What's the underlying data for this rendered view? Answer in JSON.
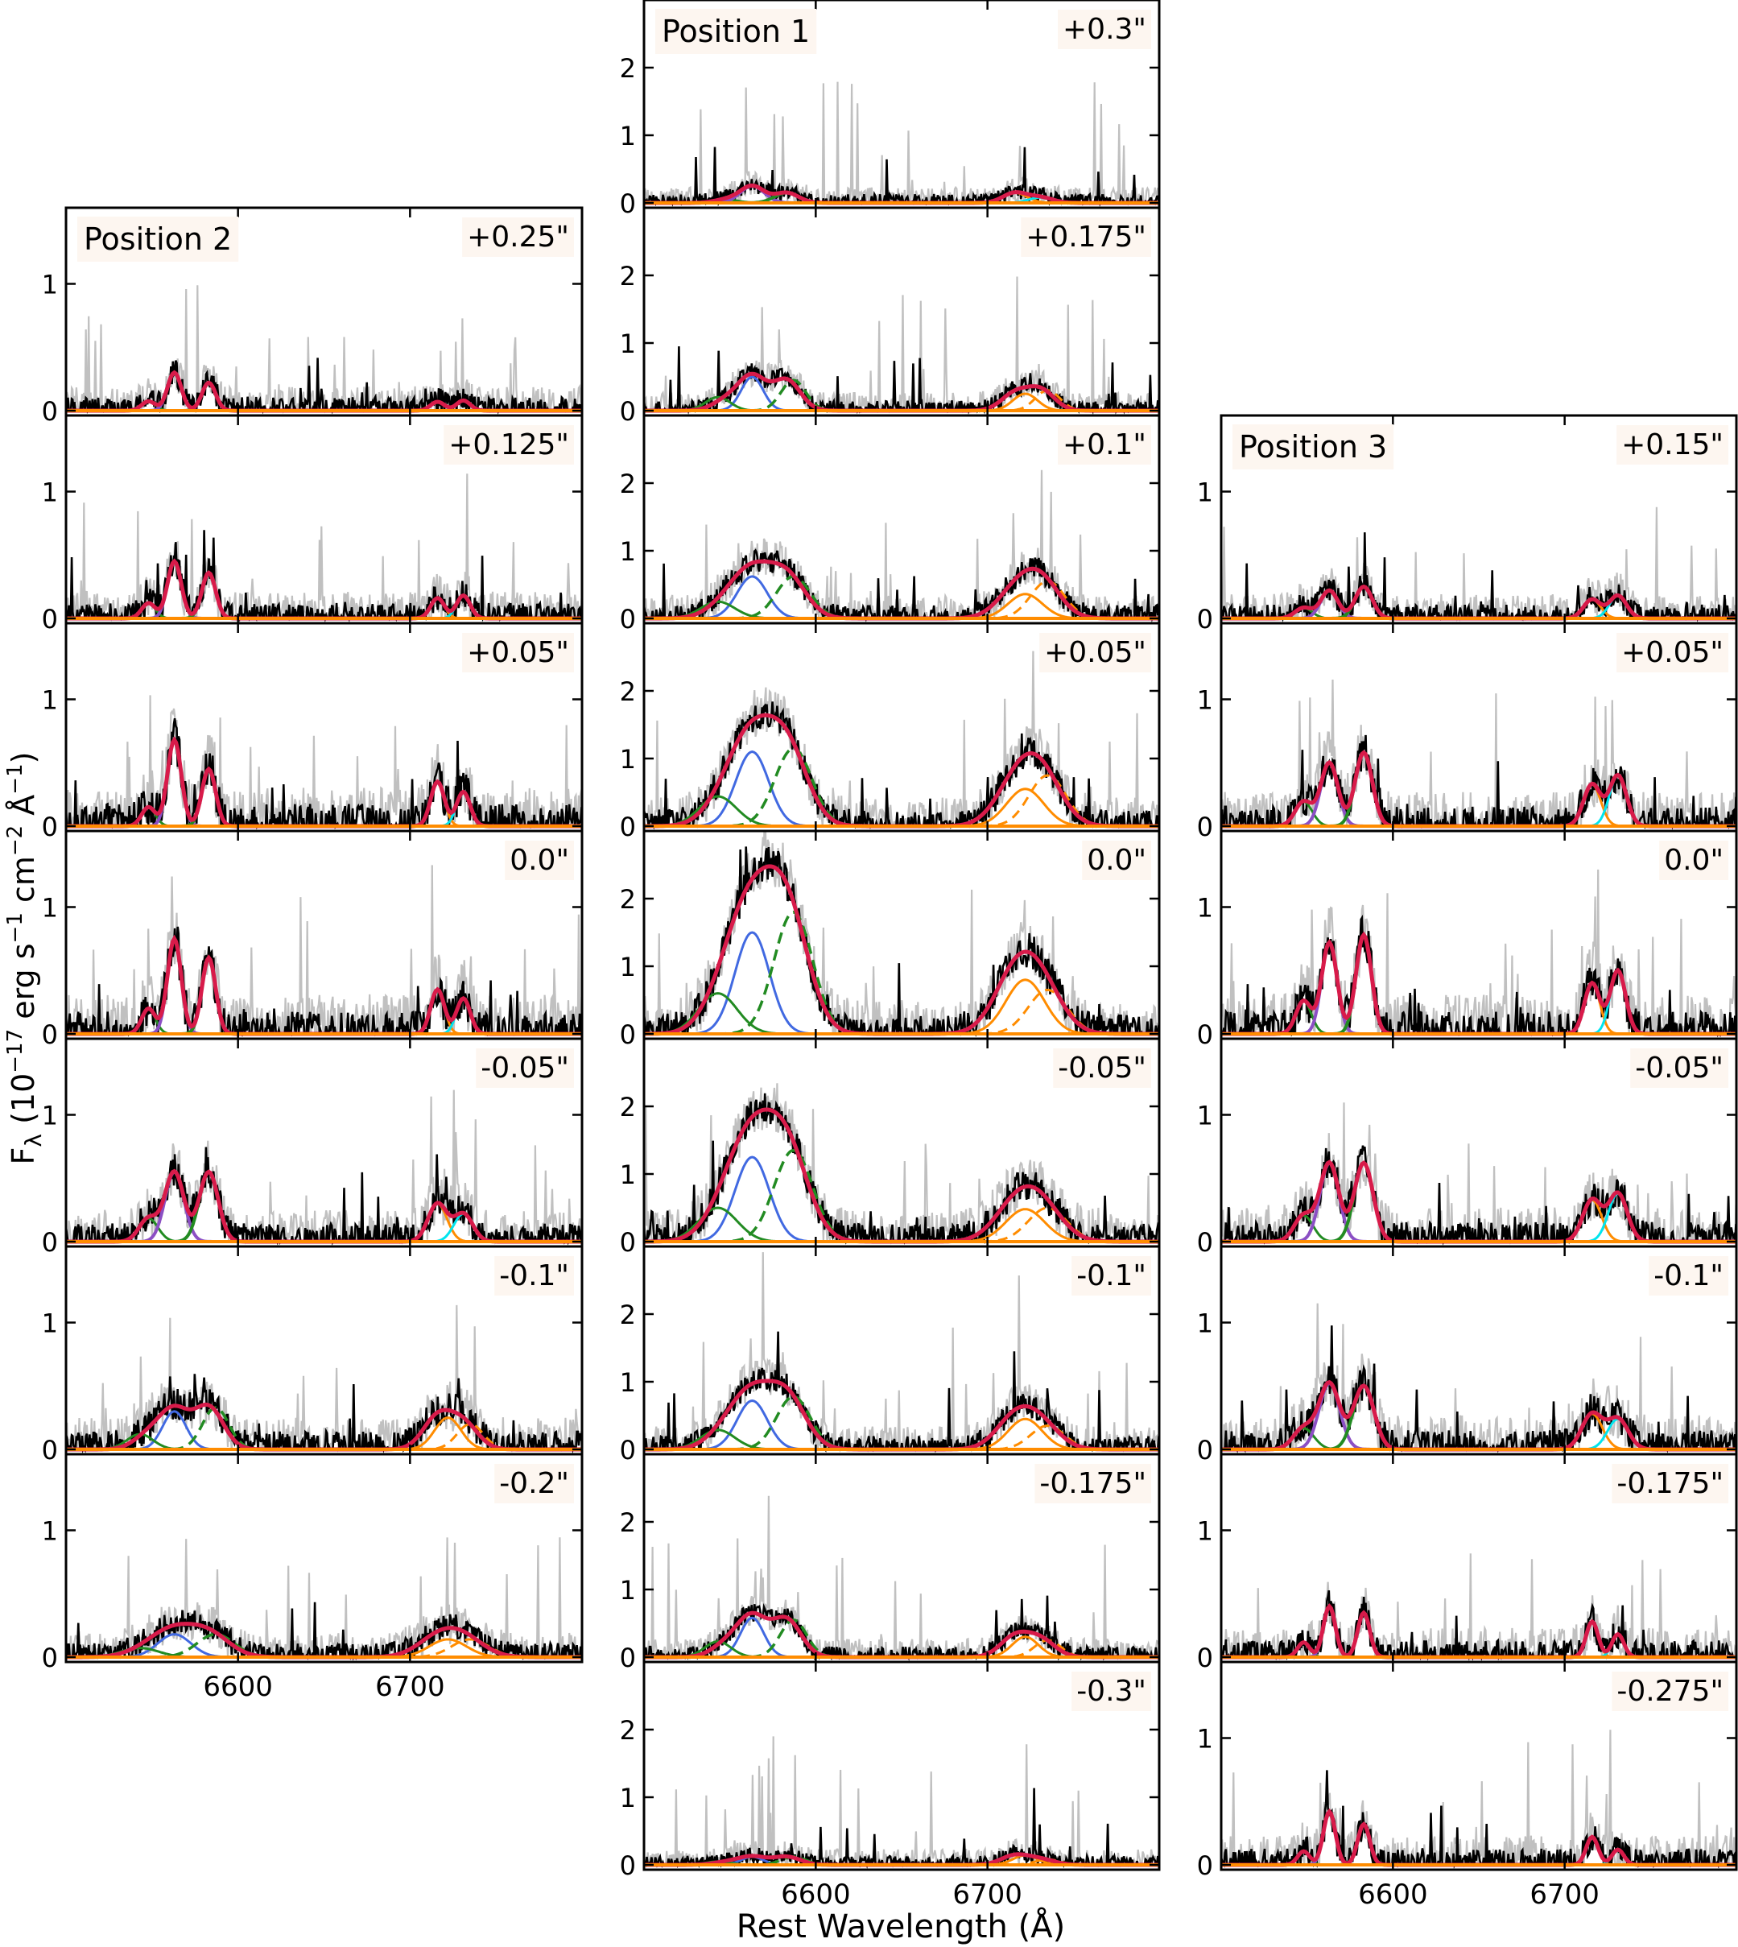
{
  "chart_data": {
    "type": "line",
    "title": "",
    "xlabel": "Rest Wavelength (Å)",
    "ylabel": "Fλ (10⁻¹⁷ erg s⁻¹ cm⁻² Å⁻¹)",
    "xlim": [
      6500,
      6800
    ],
    "xticks": [
      6600,
      6700
    ],
    "line_centers": {
      "Halpha": 6563,
      "NII_6548": 6548,
      "NII_6583": 6583,
      "SII_6716": 6716,
      "SII_6731": 6731
    },
    "colors": {
      "data": "#000000",
      "data_error": "#c0c0c0",
      "total_fit": "#d81b4a",
      "halpha_narrow": "#8b4fc4",
      "halpha_broad": "#4169e1",
      "nii": "#228b22",
      "sii": "#ff8c00",
      "continuum": "#ff8c00",
      "model_alt": "#00e5ee"
    },
    "columns": [
      {
        "label": "Position 2",
        "ylim": [
          0,
          1.6
        ],
        "yticks": [
          0,
          1
        ],
        "panels": [
          {
            "offset": "+0.25\"",
            "halpha": 0.3,
            "nii": 0.22,
            "sii1": 0.07,
            "sii2": 0.08,
            "sigma": 4.0,
            "noise": 0.1,
            "seed": 11
          },
          {
            "offset": "+0.125\"",
            "halpha": 0.45,
            "nii": 0.36,
            "sii1": 0.16,
            "sii2": 0.18,
            "sigma": 4.0,
            "noise": 0.11,
            "seed": 12
          },
          {
            "offset": "+0.05\"",
            "halpha": 0.68,
            "nii": 0.45,
            "sii1": 0.35,
            "sii2": 0.27,
            "sigma": 4.0,
            "noise": 0.16,
            "seed": 13
          },
          {
            "offset": "0.0\"",
            "halpha": 0.75,
            "nii": 0.6,
            "sii1": 0.35,
            "sii2": 0.28,
            "sigma": 4.0,
            "noise": 0.16,
            "seed": 14
          },
          {
            "offset": "-0.05\"",
            "halpha": 0.55,
            "nii": 0.55,
            "sii1": 0.3,
            "sii2": 0.22,
            "sigma": 5.5,
            "noise": 0.13,
            "seed": 15
          },
          {
            "offset": "-0.1\"",
            "halpha": 0.3,
            "nii": 0.33,
            "sii1": 0.25,
            "sii2": 0.2,
            "sigma": 8.5,
            "noise": 0.13,
            "seed": 16
          },
          {
            "offset": "-0.2\"",
            "halpha": 0.18,
            "nii": 0.18,
            "sii1": 0.14,
            "sii2": 0.14,
            "sigma": 12.0,
            "noise": 0.1,
            "seed": 17
          }
        ]
      },
      {
        "label": "Position 1",
        "ylim": [
          0,
          3.0
        ],
        "yticks": [
          0,
          1,
          2
        ],
        "panels": [
          {
            "offset": "+0.3\"",
            "halpha": 0.25,
            "nii": 0.15,
            "sii1": 0.15,
            "sii2": 0.08,
            "sigma": 7.0,
            "noise": 0.12,
            "seed": 21
          },
          {
            "offset": "+0.175\"",
            "halpha": 0.5,
            "nii": 0.45,
            "sii1": 0.25,
            "sii2": 0.3,
            "sigma": 8.0,
            "noise": 0.14,
            "seed": 22
          },
          {
            "offset": "+0.1\"",
            "halpha": 0.62,
            "nii": 0.62,
            "sii1": 0.36,
            "sii2": 0.55,
            "sigma": 11.0,
            "noise": 0.18,
            "seed": 23
          },
          {
            "offset": "+0.05\"",
            "halpha": 1.1,
            "nii": 1.15,
            "sii1": 0.55,
            "sii2": 0.75,
            "sigma": 12.0,
            "noise": 0.22,
            "seed": 24
          },
          {
            "offset": "0.0\"",
            "halpha": 1.5,
            "nii": 1.8,
            "sii1": 0.8,
            "sii2": 0.65,
            "sigma": 12.5,
            "noise": 0.26,
            "seed": 25
          },
          {
            "offset": "-0.05\"",
            "halpha": 1.25,
            "nii": 1.35,
            "sii1": 0.48,
            "sii2": 0.5,
            "sigma": 12.5,
            "noise": 0.24,
            "seed": 26
          },
          {
            "offset": "-0.1\"",
            "halpha": 0.72,
            "nii": 0.78,
            "sii1": 0.45,
            "sii2": 0.35,
            "sigma": 11.0,
            "noise": 0.18,
            "seed": 27
          },
          {
            "offset": "-0.175\"",
            "halpha": 0.58,
            "nii": 0.55,
            "sii1": 0.3,
            "sii2": 0.25,
            "sigma": 8.5,
            "noise": 0.14,
            "seed": 28
          },
          {
            "offset": "-0.3\"",
            "halpha": 0.12,
            "nii": 0.12,
            "sii1": 0.14,
            "sii2": 0.08,
            "sigma": 8.0,
            "noise": 0.12,
            "seed": 29
          }
        ]
      },
      {
        "label": "Position 3",
        "ylim": [
          0,
          1.6
        ],
        "yticks": [
          0,
          1
        ],
        "panels": [
          {
            "offset": "+0.15\"",
            "halpha": 0.22,
            "nii": 0.25,
            "sii1": 0.15,
            "sii2": 0.18,
            "sigma": 5.0,
            "noise": 0.1,
            "seed": 31
          },
          {
            "offset": "+0.05\"",
            "halpha": 0.5,
            "nii": 0.58,
            "sii1": 0.33,
            "sii2": 0.4,
            "sigma": 5.0,
            "noise": 0.14,
            "seed": 32
          },
          {
            "offset": "0.0\"",
            "halpha": 0.72,
            "nii": 0.78,
            "sii1": 0.4,
            "sii2": 0.5,
            "sigma": 4.5,
            "noise": 0.16,
            "seed": 33
          },
          {
            "offset": "-0.05\"",
            "halpha": 0.62,
            "nii": 0.62,
            "sii1": 0.33,
            "sii2": 0.38,
            "sigma": 5.5,
            "noise": 0.14,
            "seed": 34
          },
          {
            "offset": "-0.1\"",
            "halpha": 0.52,
            "nii": 0.5,
            "sii1": 0.28,
            "sii2": 0.24,
            "sigma": 6.0,
            "noise": 0.14,
            "seed": 35
          },
          {
            "offset": "-0.175\"",
            "halpha": 0.4,
            "nii": 0.35,
            "sii1": 0.28,
            "sii2": 0.18,
            "sigma": 3.5,
            "noise": 0.12,
            "seed": 36
          },
          {
            "offset": "-0.275\"",
            "halpha": 0.42,
            "nii": 0.32,
            "sii1": 0.22,
            "sii2": 0.12,
            "sigma": 3.5,
            "noise": 0.12,
            "seed": 37
          }
        ]
      }
    ]
  }
}
